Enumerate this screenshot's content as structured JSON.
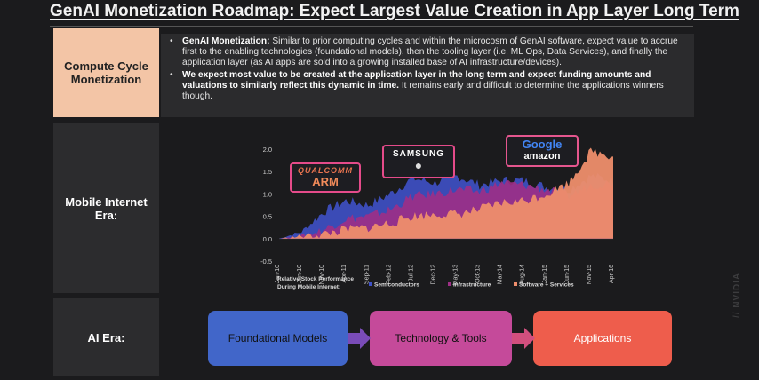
{
  "title": "GenAI Monetization Roadmap: Expect Largest Value Creation in App Layer Long Term",
  "sidebar": {
    "compute": "Compute Cycle Monetization",
    "mobile": "Mobile Internet Era:",
    "ai": "AI Era:"
  },
  "bullets": [
    {
      "lead": "GenAI Monetization:",
      "text": " Similar to prior computing cycles and within the microcosm of GenAI software, expect value to accrue first to the enabling technologies (foundational models), then the tooling layer (i.e. ML Ops, Data Services), and finally the application layer (as AI apps are sold into a growing installed base of AI infrastructure/devices)."
    },
    {
      "lead": "We expect most value to be created at the application layer in the long term and expect funding amounts and valuations to similarly reflect this dynamic in time.",
      "text": " It remains early and difficult to determine the applications winners though."
    }
  ],
  "logos": {
    "qualcomm": "QUALCOMM",
    "arm": "ARM",
    "samsung": "SAMSUNG",
    "google": "Google",
    "amazon": "amazon"
  },
  "chart_data": {
    "type": "area",
    "ylim": [
      -0.5,
      2.0
    ],
    "yticks": [
      "2.0",
      "1.5",
      "1.0",
      "0.5",
      "0.0",
      "-0.5"
    ],
    "ytick_values": [
      2.0,
      1.5,
      1.0,
      0.5,
      0.0,
      -0.5
    ],
    "categories": [
      "Jan-10",
      "Jun-10",
      "Nov-10",
      "Apr-11",
      "Sep-11",
      "Feb-12",
      "Jul-12",
      "Dec-12",
      "May-13",
      "Oct-13",
      "Mar-14",
      "Aug-14",
      "Jan-15",
      "Jun-15",
      "Nov-15",
      "Apr-16"
    ],
    "caption": "Relative Stock Performance During Mobile Internet:",
    "series": [
      {
        "name": "Semiconductors",
        "color": "#3f51c8",
        "values": [
          0.0,
          0.15,
          0.6,
          0.85,
          0.75,
          1.0,
          1.35,
          1.25,
          1.4,
          1.2,
          1.3,
          1.3,
          1.15,
          1.1,
          1.4,
          1.3
        ]
      },
      {
        "name": "Infrastructure",
        "color": "#9e2f86",
        "values": [
          0.0,
          0.05,
          0.2,
          0.45,
          0.5,
          0.65,
          0.95,
          1.0,
          1.1,
          1.05,
          1.25,
          1.2,
          1.1,
          0.95,
          1.2,
          1.25
        ]
      },
      {
        "name": "Software + Services",
        "color": "#ee8e6c",
        "values": [
          0.0,
          0.05,
          0.1,
          0.2,
          0.25,
          0.35,
          0.5,
          0.55,
          0.55,
          0.65,
          0.8,
          0.85,
          1.0,
          1.25,
          1.95,
          1.85
        ]
      }
    ]
  },
  "flow": [
    "Foundational Models",
    "Technology & Tools",
    "Applications"
  ],
  "colors": {
    "models": "#4166c9",
    "tools": "#c54a9a",
    "apps": "#ee5d4c"
  },
  "watermark": "// NVIDIA"
}
